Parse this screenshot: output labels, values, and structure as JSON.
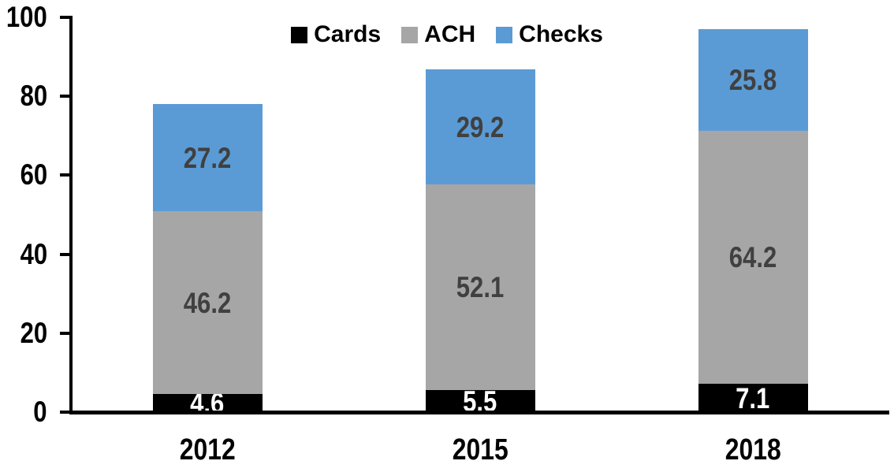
{
  "chart_data": {
    "type": "bar",
    "stacked": true,
    "title": "",
    "categories": [
      "2012",
      "2015",
      "2018"
    ],
    "series": [
      {
        "name": "Cards",
        "color": "#000000",
        "label_color": "#FFFFFF",
        "values": [
          4.6,
          5.5,
          7.1
        ]
      },
      {
        "name": "ACH",
        "color": "#A6A6A6",
        "label_color": "#404040",
        "values": [
          46.2,
          52.1,
          64.2
        ]
      },
      {
        "name": "Checks",
        "color": "#5B9BD5",
        "label_color": "#404040",
        "values": [
          27.2,
          29.2,
          25.8
        ]
      }
    ],
    "ylim": [
      0,
      100
    ],
    "yticks": [
      0,
      20,
      40,
      60,
      80,
      100
    ],
    "legend_position": "top-center",
    "grid": false,
    "axis_color": "#000000",
    "background": "#FFFFFF"
  }
}
